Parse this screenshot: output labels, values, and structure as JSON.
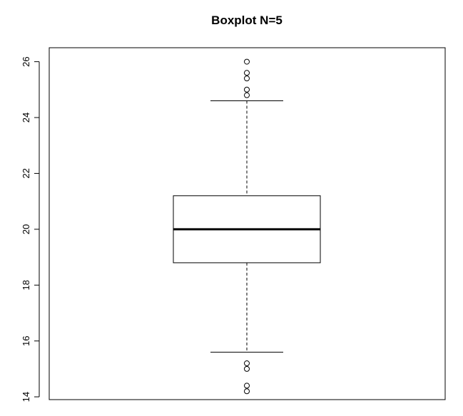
{
  "chart_data": {
    "type": "box",
    "title": "Boxplot N=5",
    "xlabel": "",
    "ylabel": "",
    "ylim": [
      13.9,
      26.5
    ],
    "yticks": [
      14,
      16,
      18,
      20,
      22,
      24,
      26
    ],
    "ytick_labels": [
      "14",
      "16",
      "18",
      "20",
      "22",
      "24",
      "26"
    ],
    "grid": false,
    "legend": "none",
    "box": {
      "whisker_low": 15.6,
      "q1": 18.8,
      "median": 20.0,
      "q3": 21.2,
      "whisker_high": 24.6
    },
    "outliers": [
      26.0,
      25.6,
      25.4,
      25.0,
      24.8,
      15.2,
      15.0,
      14.4,
      14.2
    ]
  },
  "colors": {
    "background": "#ffffff",
    "stroke": "#000000"
  }
}
